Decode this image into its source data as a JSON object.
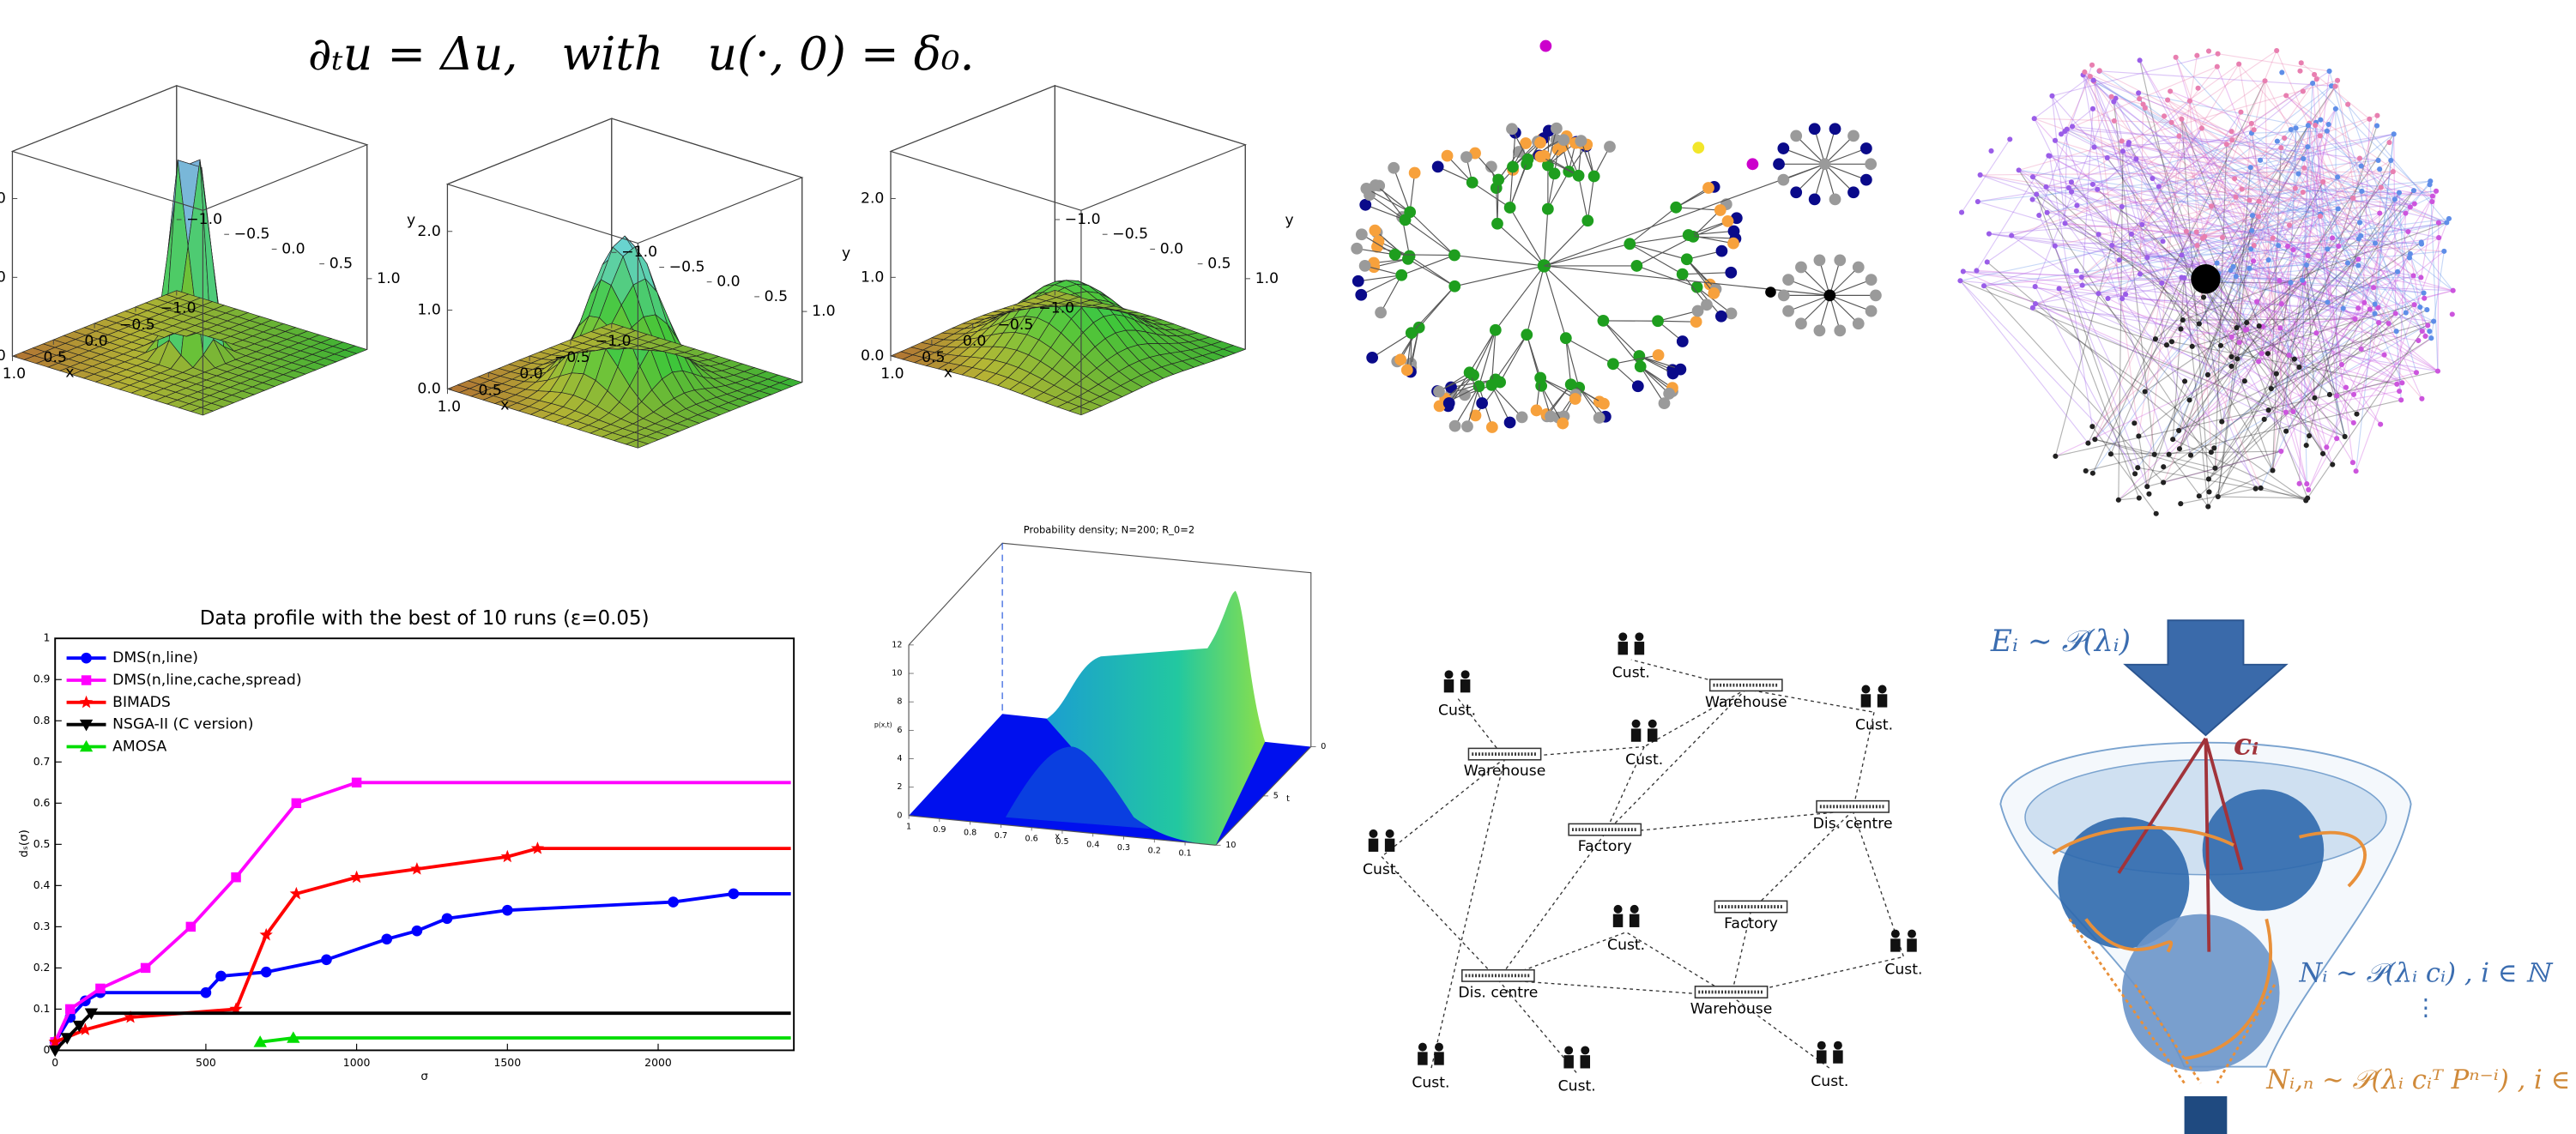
{
  "equation": "∂ₜu = Δu,   with   u(·, 0) = δ₀.",
  "surface_plots": {
    "z_ticks": [
      {
        "value": 0,
        "label": "0.0"
      },
      {
        "value": 1,
        "label": "1.0"
      },
      {
        "value": 2,
        "label": "2.0"
      }
    ],
    "y_ticks": [
      {
        "value": -1,
        "label": "−1.0"
      },
      {
        "value": -0.5,
        "label": "−0.5"
      },
      {
        "value": 0,
        "label": "0.0"
      },
      {
        "value": 0.5,
        "label": "0.5"
      },
      {
        "value": 1,
        "label": "1.0"
      }
    ],
    "x_ticks": [
      {
        "value": 1,
        "label": "1.0"
      },
      {
        "value": 0.5,
        "label": "0.5"
      },
      {
        "value": 0,
        "label": "0.0"
      },
      {
        "value": -0.5,
        "label": "−0.5"
      },
      {
        "value": -1,
        "label": "−1.0"
      }
    ],
    "x_label": "x",
    "y_label": "y"
  },
  "density_plot": {
    "title": "Probability density; N=200;  R_0=2",
    "z_label": "p(x,t)",
    "x_label": "x",
    "t_label": "t",
    "z_ticks": [
      0,
      2,
      4,
      6,
      8,
      10,
      12
    ],
    "x_ticks": [
      1,
      0.9,
      0.8,
      0.7,
      0.6,
      0.5,
      0.4,
      0.3,
      0.2,
      0.1
    ],
    "t_ticks": [
      10,
      5,
      0
    ]
  },
  "chart_data": {
    "type": "line",
    "title": "Data profile with the best of 10 runs (ε=0.05)",
    "x_label": "σ",
    "y_label": "dₛ(σ)",
    "xlim": [
      0,
      2450
    ],
    "ylim": [
      0,
      1
    ],
    "xticks": [
      0,
      500,
      1000,
      1500,
      2000
    ],
    "yticks": [
      0,
      0.1,
      0.2,
      0.3,
      0.4,
      0.5,
      0.6,
      0.7,
      0.8,
      0.9,
      1
    ],
    "series": [
      {
        "name": "DMS(n,line)",
        "color": "#0000ff",
        "marker": "circle",
        "x": [
          0,
          50,
          100,
          150,
          500,
          550,
          700,
          900,
          1100,
          1200,
          1300,
          1500,
          2050,
          2250,
          2440
        ],
        "values": [
          0.02,
          0.08,
          0.12,
          0.14,
          0.14,
          0.18,
          0.19,
          0.22,
          0.27,
          0.29,
          0.32,
          0.34,
          0.36,
          0.38,
          0.38
        ]
      },
      {
        "name": "DMS(n,line,cache,spread)",
        "color": "#ff00ff",
        "marker": "square",
        "x": [
          0,
          50,
          150,
          300,
          450,
          600,
          800,
          1000,
          2440
        ],
        "values": [
          0.02,
          0.1,
          0.15,
          0.2,
          0.3,
          0.42,
          0.6,
          0.65,
          0.65
        ]
      },
      {
        "name": "BIMADS",
        "color": "#ff0000",
        "marker": "star",
        "x": [
          0,
          100,
          250,
          600,
          700,
          800,
          1000,
          1200,
          1500,
          1600,
          2440
        ],
        "values": [
          0.02,
          0.05,
          0.08,
          0.1,
          0.28,
          0.38,
          0.42,
          0.44,
          0.47,
          0.49,
          0.49
        ]
      },
      {
        "name": "NSGA-II (C version)",
        "color": "#000000",
        "marker": "triangle-down",
        "x": [
          0,
          40,
          80,
          120,
          2440
        ],
        "values": [
          0,
          0.03,
          0.06,
          0.09,
          0.09
        ]
      },
      {
        "name": "AMOSA",
        "color": "#00dd00",
        "marker": "triangle",
        "x": [
          680,
          790,
          2440
        ],
        "values": [
          0.02,
          0.03,
          0.03
        ]
      }
    ]
  },
  "supply_network": {
    "nodes": [
      "Cust.",
      "Warehouse",
      "Cust.",
      "Cust.",
      "Cust.",
      "Warehouse",
      "Factory",
      "Dis. centre",
      "Cust.",
      "Cust.",
      "Factory",
      "Cust.",
      "Dis. centre",
      "Warehouse",
      "Cust.",
      "Cust.",
      "Cust."
    ]
  },
  "poisson_diagram": {
    "source": "Eᵢ ∼ 𝒫(λᵢ)",
    "vector": "cᵢ",
    "first": "Nᵢ ∼ 𝒫(λᵢ cᵢ) , i ∈ ℕ",
    "dots": "⋮",
    "later": "Nᵢ,ₙ ∼ 𝒫(λᵢ cᵢᵀ Pⁿ⁻ⁱ) , i ∈ ℕ"
  }
}
